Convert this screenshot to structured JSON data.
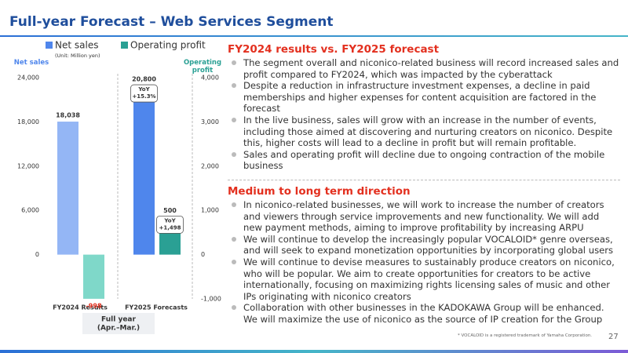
{
  "header": {
    "title": "Full-year Forecast – Web Services Segment"
  },
  "chart_data": {
    "type": "bar",
    "legend": [
      "Net sales",
      "Operating profit"
    ],
    "unit_note": "(Unit: Million yen)",
    "y_label": "Net sales",
    "y2_label": "Operating profit",
    "x_label": [
      "Full year",
      "(Apr.–Mar.)"
    ],
    "categories": [
      "FY2024 Results",
      "FY2025 Forecasts"
    ],
    "series": [
      {
        "name": "Net sales",
        "color": "#4f86ec",
        "colors": [
          "#94b6f5",
          "#4f86ec"
        ],
        "values": [
          18038,
          20800
        ],
        "value_labels": [
          "18,038",
          "20,800"
        ],
        "yoy_labels": [
          null,
          [
            "YoY",
            "+15.3%"
          ]
        ]
      },
      {
        "name": "Operating profit",
        "axis": "y2",
        "color": "#2aa094",
        "colors": [
          "#7fd8c9",
          "#2aa094"
        ],
        "values": [
          -998,
          500
        ],
        "value_labels": [
          "-998",
          "500"
        ],
        "yoy_labels": [
          null,
          [
            "YoY",
            "+1,498"
          ]
        ]
      }
    ],
    "ylim": [
      -6000,
      24000
    ],
    "yticks": [
      0,
      {
        "value": 6000,
        "label": "6,000"
      },
      {
        "value": 12000,
        "label": "12,000"
      },
      {
        "value": 18000,
        "label": "18,000"
      },
      {
        "value": 24000,
        "label": "24,000"
      }
    ],
    "y2lim": [
      -1000,
      4000
    ],
    "y2ticks": [
      {
        "value": -1000,
        "label": "-1,000"
      },
      0,
      {
        "value": 1000,
        "label": "1,000"
      },
      {
        "value": 2000,
        "label": "2,000"
      },
      {
        "value": 3000,
        "label": "3,000"
      },
      {
        "value": 4000,
        "label": "4,000"
      }
    ],
    "grid": false
  },
  "sections": [
    {
      "heading": "FY2024 results vs. FY2025 forecast",
      "bullets": [
        "The segment overall and niconico-related business will record increased sales and profit compared to FY2024, which was impacted by the cyberattack",
        "Despite a reduction in infrastructure investment expenses, a decline in paid memberships and higher expenses for content acquisition are factored in the forecast",
        "In the live business, sales will grow with an increase in the number of events, including those aimed at discovering and nurturing creators on niconico. Despite this, higher costs will lead to a decline in profit but will remain profitable.",
        "Sales and operating profit will decline due to ongoing contraction of the mobile business"
      ]
    },
    {
      "heading": "Medium to long term direction",
      "bullets": [
        "In niconico-related businesses, we will work to increase the number of creators and viewers through service improvements and new functionality. We will add new payment methods, aiming to improve profitability by increasing ARPU",
        "We will continue to develop the increasingly popular VOCALOID* genre overseas, and will seek to expand monetization opportunities by incorporating global users",
        "We will continue to devise measures to sustainably produce creators on niconico, who will be popular. We aim to create opportunities for creators to be active internationally, focusing on maximizing rights licensing sales of music and other IPs originating with niconico creators",
        "Collaboration with other businesses in the KADOKAWA Group will be enhanced. We will maximize the use of niconico as the source of IP creation for the Group"
      ]
    }
  ],
  "footnote": "* VOCALOID is a registered trademark of Yamaha Corporation.",
  "page_number": "27"
}
